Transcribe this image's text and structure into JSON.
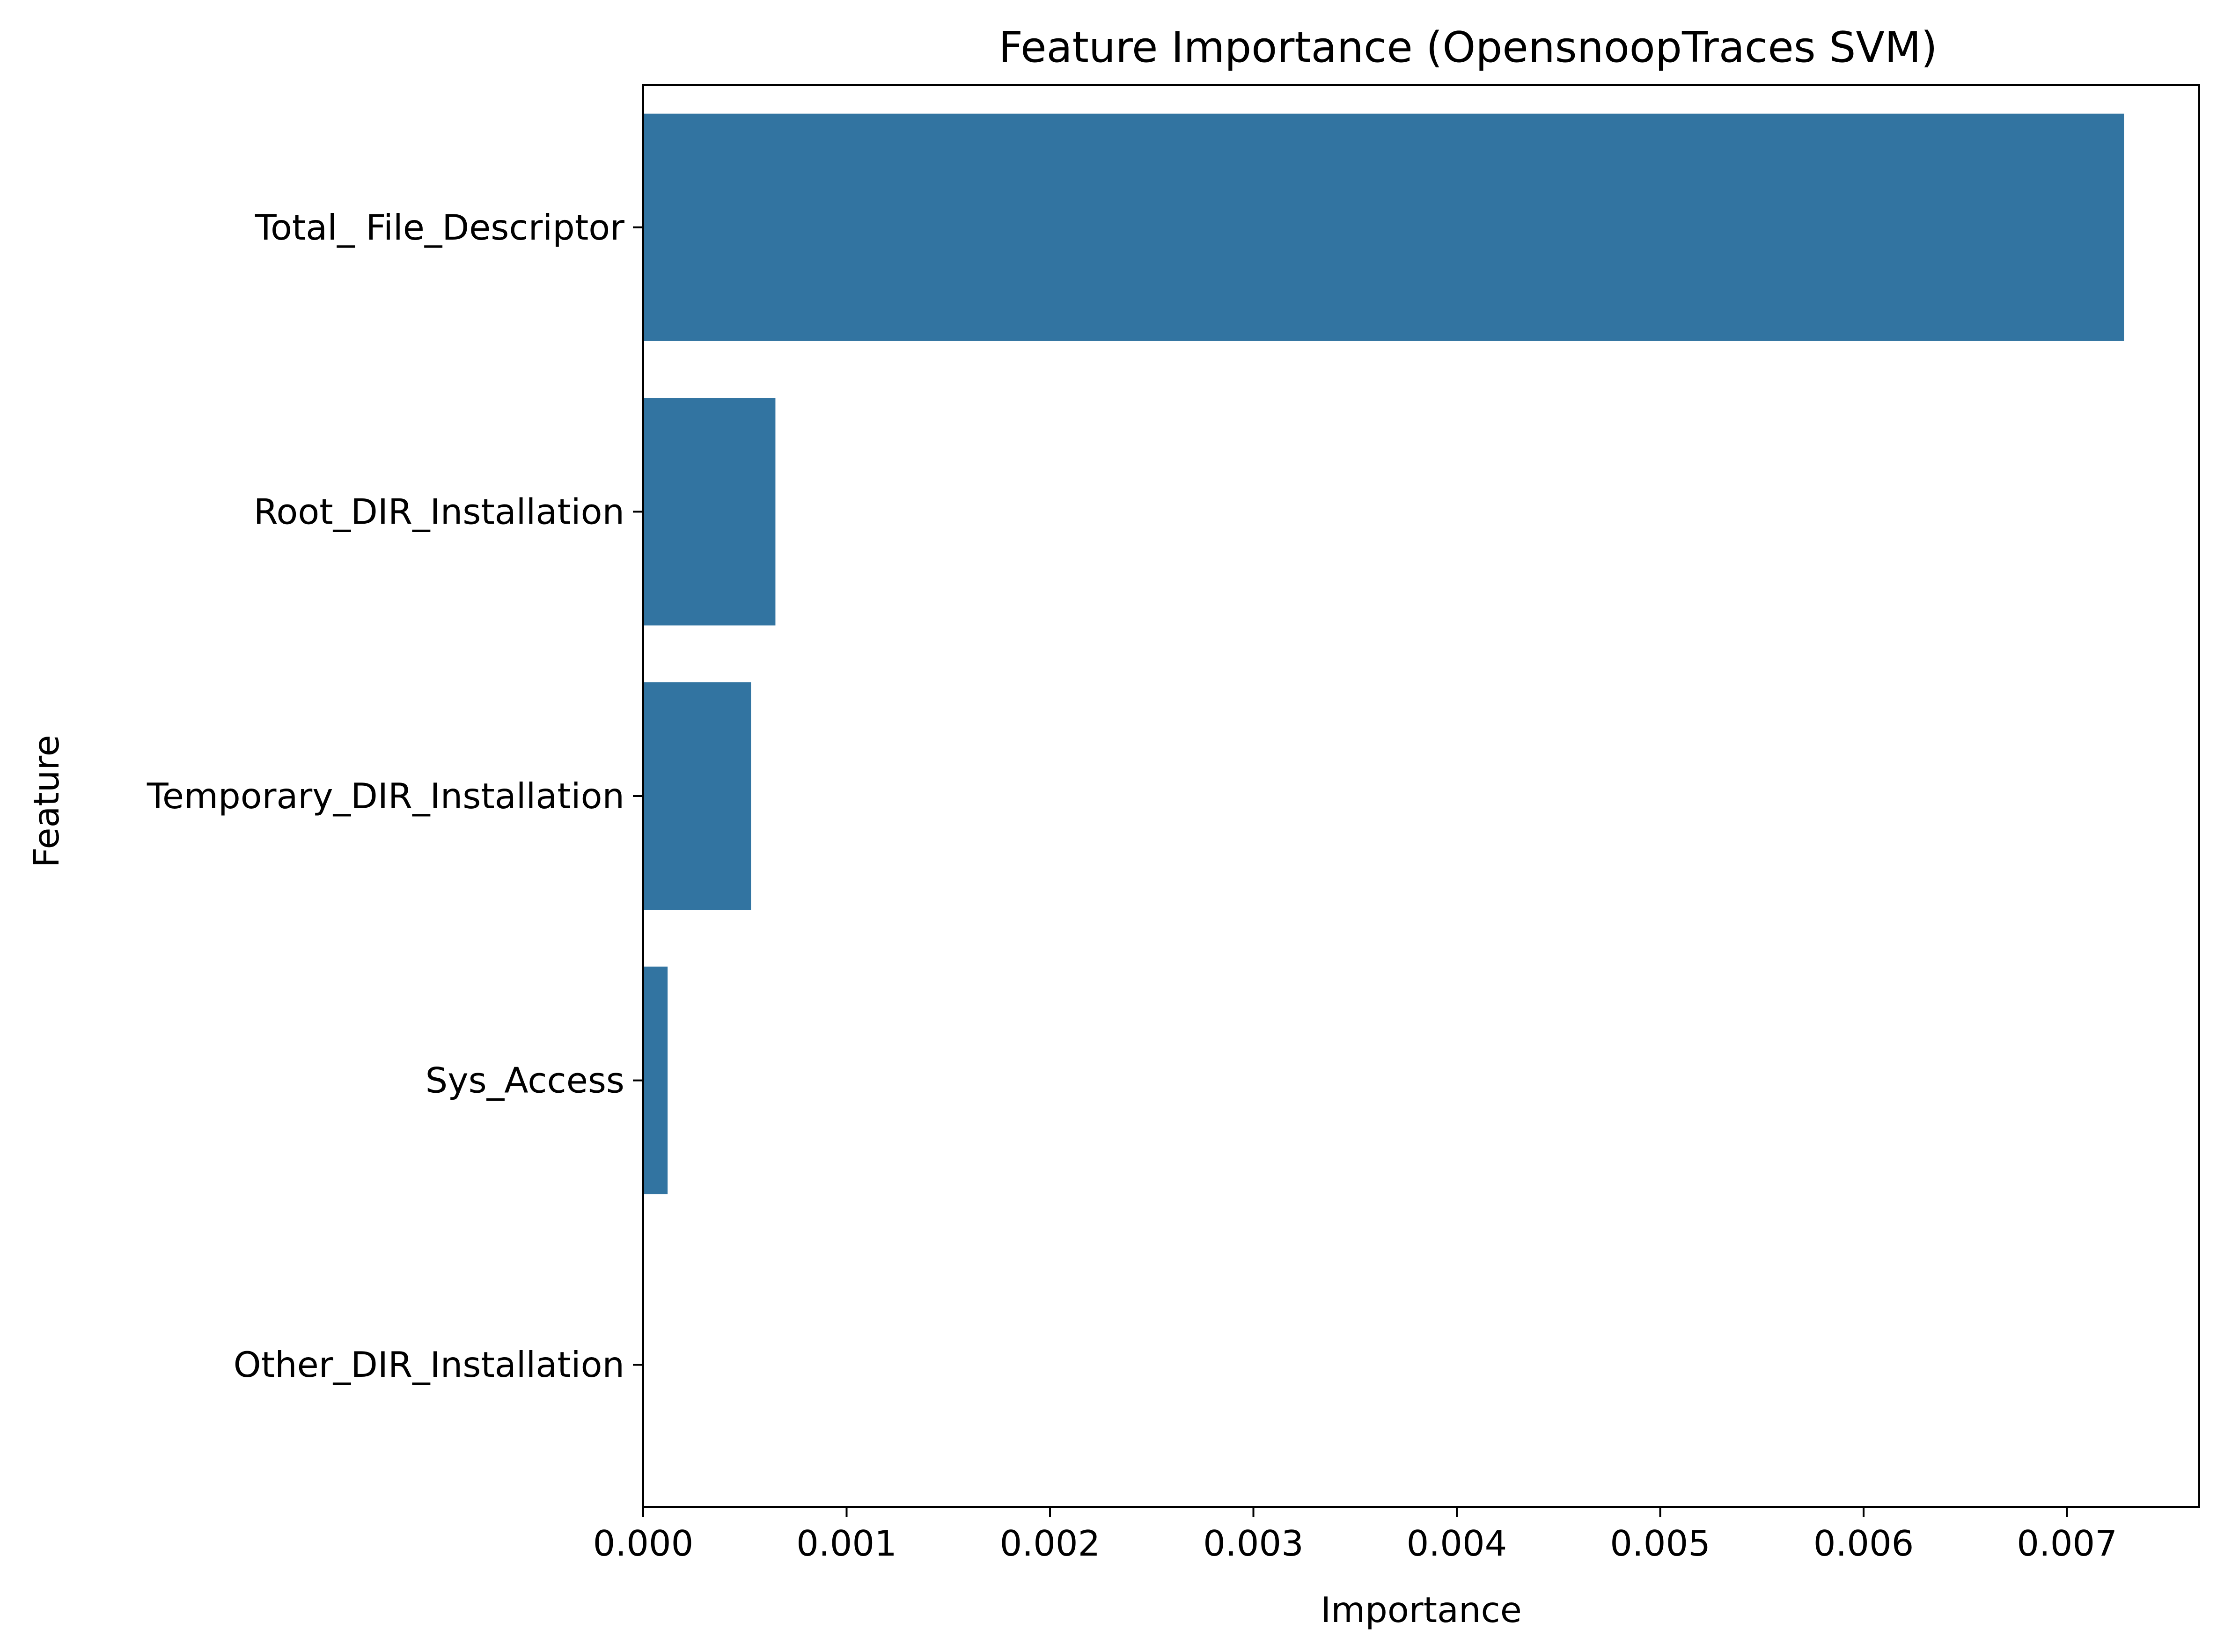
{
  "chart_data": {
    "type": "bar",
    "orientation": "horizontal",
    "title": "Feature Importance (OpensnoopTraces SVM)",
    "xlabel": "Importance",
    "ylabel": "Feature",
    "categories": [
      "Total_ File_Descriptor",
      "Root_DIR_Installation",
      "Temporary_DIR_Installation",
      "Sys_Access",
      "Other_DIR_Installation"
    ],
    "values": [
      0.00728,
      0.00065,
      0.00053,
      0.00012,
      0.0
    ],
    "xlim": [
      0,
      0.00765
    ],
    "xticks": [
      0.0,
      0.001,
      0.002,
      0.003,
      0.004,
      0.005,
      0.006,
      0.007
    ],
    "xtick_labels": [
      "0.000",
      "0.001",
      "0.002",
      "0.003",
      "0.004",
      "0.005",
      "0.006",
      "0.007"
    ],
    "grid": false,
    "legend": "none",
    "bar_color": "#3274a1"
  }
}
